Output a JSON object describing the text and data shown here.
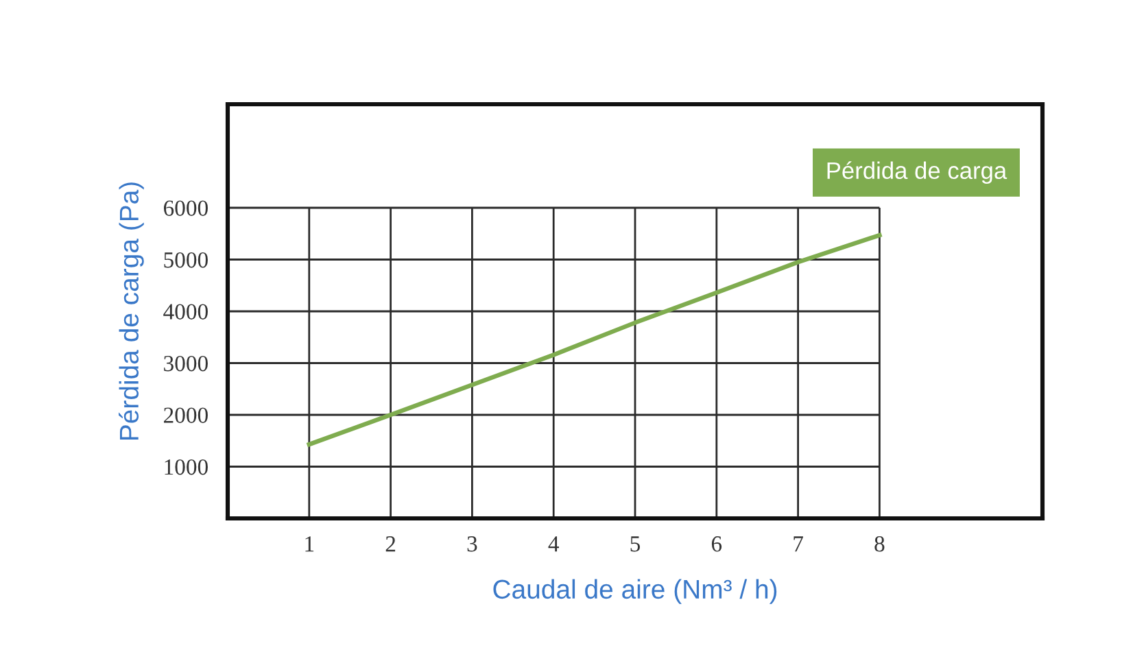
{
  "chart_data": {
    "type": "line",
    "xlabel": "Caudal de aire (Nm³ / h)",
    "ylabel": "Pérdida de carga (Pa)",
    "x": [
      1,
      2,
      3,
      4,
      5,
      6,
      7,
      8
    ],
    "series": [
      {
        "name": "Pérdida de carga",
        "color": "#7fac4f",
        "values": [
          1430,
          2000,
          2580,
          3160,
          3780,
          4360,
          4950,
          5470
        ]
      }
    ],
    "xlim": [
      0,
      10
    ],
    "xticks": [
      1,
      2,
      3,
      4,
      5,
      6,
      7,
      8
    ],
    "ylim": [
      0,
      8000
    ],
    "yticks": [
      1000,
      2000,
      3000,
      4000,
      5000,
      6000
    ],
    "grid": true,
    "legend": "top right",
    "line_style": "solid"
  }
}
